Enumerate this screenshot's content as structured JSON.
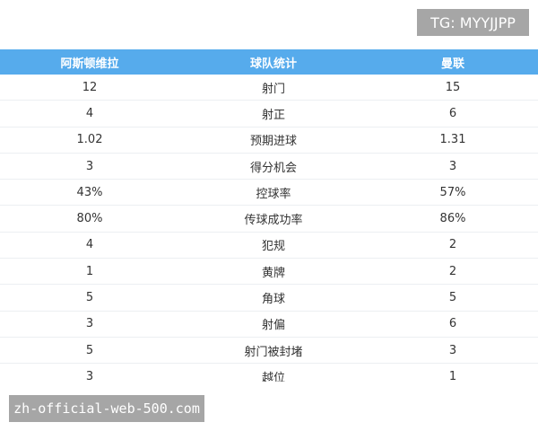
{
  "watermarks": {
    "top": "TG: MYYJJPP",
    "bottom": "zh-official-web-500.com"
  },
  "table": {
    "headers": [
      "阿斯顿维拉",
      "球队统计",
      "曼联"
    ],
    "rows": [
      [
        "12",
        "射门",
        "15"
      ],
      [
        "4",
        "射正",
        "6"
      ],
      [
        "1.02",
        "预期进球",
        "1.31"
      ],
      [
        "3",
        "得分机会",
        "3"
      ],
      [
        "43%",
        "控球率",
        "57%"
      ],
      [
        "80%",
        "传球成功率",
        "86%"
      ],
      [
        "4",
        "犯规",
        "2"
      ],
      [
        "1",
        "黄牌",
        "2"
      ],
      [
        "5",
        "角球",
        "5"
      ],
      [
        "3",
        "射偏",
        "6"
      ],
      [
        "5",
        "射门被封堵",
        "3"
      ],
      [
        "3",
        "越位",
        "1"
      ]
    ]
  },
  "colors": {
    "header_bg": "#56abec"
  }
}
